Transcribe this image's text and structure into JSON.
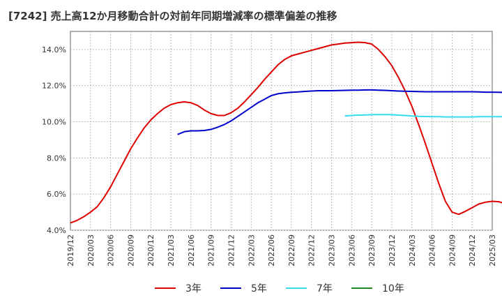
{
  "chart_data": {
    "type": "line",
    "title": "[7242]  売上高12か月移動合計の対前年同期増減率の標準偏差の推移",
    "xlabel": "",
    "ylabel": "",
    "ylim": [
      4.0,
      15.0
    ],
    "y_ticks": [
      "4.0%",
      "6.0%",
      "8.0%",
      "10.0%",
      "12.0%",
      "14.0%"
    ],
    "y_tick_values": [
      4,
      6,
      8,
      10,
      12,
      14
    ],
    "x_ticks": [
      "2019/12",
      "2020/03",
      "2020/06",
      "2020/09",
      "2020/12",
      "2021/03",
      "2021/06",
      "2021/09",
      "2021/12",
      "2022/03",
      "2022/06",
      "2022/09",
      "2022/12",
      "2023/03",
      "2023/06",
      "2023/09",
      "2023/12",
      "2024/03",
      "2024/06",
      "2024/09",
      "2024/12",
      "2025/03"
    ],
    "grid": true,
    "legend_position": "bottom",
    "colors": {
      "3y": "#dd0000",
      "5y": "#0000cc",
      "7y": "#33ddee",
      "10y": "#228822"
    },
    "series": [
      {
        "name": "3年",
        "key": "3y",
        "start_index": 0,
        "values": [
          4.4,
          4.55,
          4.75,
          5.0,
          5.3,
          5.8,
          6.4,
          7.1,
          7.8,
          8.5,
          9.1,
          9.65,
          10.1,
          10.45,
          10.75,
          10.95,
          11.05,
          11.1,
          11.05,
          10.9,
          10.65,
          10.45,
          10.35,
          10.35,
          10.5,
          10.75,
          11.1,
          11.5,
          11.9,
          12.35,
          12.75,
          13.15,
          13.45,
          13.65,
          13.75,
          13.85,
          13.95,
          14.05,
          14.15,
          14.25,
          14.3,
          14.35,
          14.38,
          14.4,
          14.38,
          14.3,
          14.0,
          13.6,
          13.1,
          12.45,
          11.7,
          10.85,
          9.85,
          8.8,
          7.7,
          6.6,
          5.6,
          5.0,
          4.88,
          5.05,
          5.25,
          5.45,
          5.55,
          5.6,
          5.58,
          5.45
        ]
      },
      {
        "name": "5年",
        "key": "5y",
        "start_index": 16,
        "values": [
          9.3,
          9.45,
          9.5,
          9.5,
          9.52,
          9.58,
          9.7,
          9.85,
          10.05,
          10.3,
          10.55,
          10.8,
          11.05,
          11.25,
          11.45,
          11.55,
          11.6,
          11.63,
          11.65,
          11.68,
          11.7,
          11.72,
          11.72,
          11.72,
          11.73,
          11.74,
          11.75,
          11.75,
          11.76,
          11.76,
          11.75,
          11.74,
          11.72,
          11.7,
          11.69,
          11.68,
          11.67,
          11.66,
          11.66,
          11.66,
          11.66,
          11.66,
          11.66,
          11.66,
          11.66,
          11.65,
          11.64,
          11.64,
          11.63,
          11.62
        ]
      },
      {
        "name": "7年",
        "key": "7y",
        "start_index": 41,
        "values": [
          10.32,
          10.35,
          10.37,
          10.38,
          10.39,
          10.4,
          10.4,
          10.39,
          10.37,
          10.35,
          10.32,
          10.3,
          10.29,
          10.28,
          10.28,
          10.27,
          10.27,
          10.27,
          10.27,
          10.27,
          10.28,
          10.28,
          10.28,
          10.28,
          10.28
        ]
      },
      {
        "name": "10年",
        "key": "10y",
        "start_index": 0,
        "values": []
      }
    ]
  }
}
